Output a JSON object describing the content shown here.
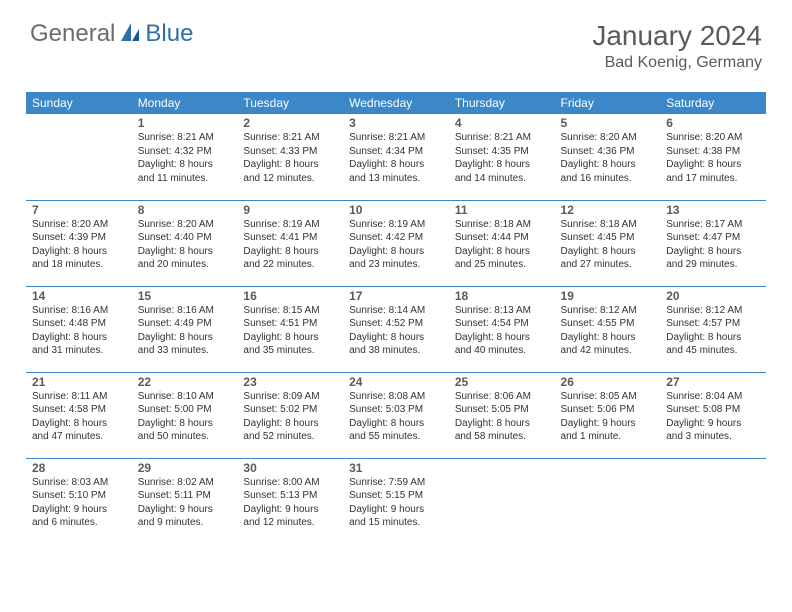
{
  "brand": {
    "part1": "General",
    "part2": "Blue"
  },
  "title": "January 2024",
  "location": "Bad Koenig, Germany",
  "colors": {
    "header_bg": "#3b87c8",
    "header_text": "#ffffff",
    "grid_line": "#3b87c8",
    "text": "#333333",
    "title_text": "#5a5a5a",
    "logo_gray": "#6b6b6b",
    "logo_blue": "#2f6fa8"
  },
  "weekdays": [
    "Sunday",
    "Monday",
    "Tuesday",
    "Wednesday",
    "Thursday",
    "Friday",
    "Saturday"
  ],
  "days": {
    "1": {
      "sunrise": "Sunrise: 8:21 AM",
      "sunset": "Sunset: 4:32 PM",
      "daylight1": "Daylight: 8 hours",
      "daylight2": "and 11 minutes."
    },
    "2": {
      "sunrise": "Sunrise: 8:21 AM",
      "sunset": "Sunset: 4:33 PM",
      "daylight1": "Daylight: 8 hours",
      "daylight2": "and 12 minutes."
    },
    "3": {
      "sunrise": "Sunrise: 8:21 AM",
      "sunset": "Sunset: 4:34 PM",
      "daylight1": "Daylight: 8 hours",
      "daylight2": "and 13 minutes."
    },
    "4": {
      "sunrise": "Sunrise: 8:21 AM",
      "sunset": "Sunset: 4:35 PM",
      "daylight1": "Daylight: 8 hours",
      "daylight2": "and 14 minutes."
    },
    "5": {
      "sunrise": "Sunrise: 8:20 AM",
      "sunset": "Sunset: 4:36 PM",
      "daylight1": "Daylight: 8 hours",
      "daylight2": "and 16 minutes."
    },
    "6": {
      "sunrise": "Sunrise: 8:20 AM",
      "sunset": "Sunset: 4:38 PM",
      "daylight1": "Daylight: 8 hours",
      "daylight2": "and 17 minutes."
    },
    "7": {
      "sunrise": "Sunrise: 8:20 AM",
      "sunset": "Sunset: 4:39 PM",
      "daylight1": "Daylight: 8 hours",
      "daylight2": "and 18 minutes."
    },
    "8": {
      "sunrise": "Sunrise: 8:20 AM",
      "sunset": "Sunset: 4:40 PM",
      "daylight1": "Daylight: 8 hours",
      "daylight2": "and 20 minutes."
    },
    "9": {
      "sunrise": "Sunrise: 8:19 AM",
      "sunset": "Sunset: 4:41 PM",
      "daylight1": "Daylight: 8 hours",
      "daylight2": "and 22 minutes."
    },
    "10": {
      "sunrise": "Sunrise: 8:19 AM",
      "sunset": "Sunset: 4:42 PM",
      "daylight1": "Daylight: 8 hours",
      "daylight2": "and 23 minutes."
    },
    "11": {
      "sunrise": "Sunrise: 8:18 AM",
      "sunset": "Sunset: 4:44 PM",
      "daylight1": "Daylight: 8 hours",
      "daylight2": "and 25 minutes."
    },
    "12": {
      "sunrise": "Sunrise: 8:18 AM",
      "sunset": "Sunset: 4:45 PM",
      "daylight1": "Daylight: 8 hours",
      "daylight2": "and 27 minutes."
    },
    "13": {
      "sunrise": "Sunrise: 8:17 AM",
      "sunset": "Sunset: 4:47 PM",
      "daylight1": "Daylight: 8 hours",
      "daylight2": "and 29 minutes."
    },
    "14": {
      "sunrise": "Sunrise: 8:16 AM",
      "sunset": "Sunset: 4:48 PM",
      "daylight1": "Daylight: 8 hours",
      "daylight2": "and 31 minutes."
    },
    "15": {
      "sunrise": "Sunrise: 8:16 AM",
      "sunset": "Sunset: 4:49 PM",
      "daylight1": "Daylight: 8 hours",
      "daylight2": "and 33 minutes."
    },
    "16": {
      "sunrise": "Sunrise: 8:15 AM",
      "sunset": "Sunset: 4:51 PM",
      "daylight1": "Daylight: 8 hours",
      "daylight2": "and 35 minutes."
    },
    "17": {
      "sunrise": "Sunrise: 8:14 AM",
      "sunset": "Sunset: 4:52 PM",
      "daylight1": "Daylight: 8 hours",
      "daylight2": "and 38 minutes."
    },
    "18": {
      "sunrise": "Sunrise: 8:13 AM",
      "sunset": "Sunset: 4:54 PM",
      "daylight1": "Daylight: 8 hours",
      "daylight2": "and 40 minutes."
    },
    "19": {
      "sunrise": "Sunrise: 8:12 AM",
      "sunset": "Sunset: 4:55 PM",
      "daylight1": "Daylight: 8 hours",
      "daylight2": "and 42 minutes."
    },
    "20": {
      "sunrise": "Sunrise: 8:12 AM",
      "sunset": "Sunset: 4:57 PM",
      "daylight1": "Daylight: 8 hours",
      "daylight2": "and 45 minutes."
    },
    "21": {
      "sunrise": "Sunrise: 8:11 AM",
      "sunset": "Sunset: 4:58 PM",
      "daylight1": "Daylight: 8 hours",
      "daylight2": "and 47 minutes."
    },
    "22": {
      "sunrise": "Sunrise: 8:10 AM",
      "sunset": "Sunset: 5:00 PM",
      "daylight1": "Daylight: 8 hours",
      "daylight2": "and 50 minutes."
    },
    "23": {
      "sunrise": "Sunrise: 8:09 AM",
      "sunset": "Sunset: 5:02 PM",
      "daylight1": "Daylight: 8 hours",
      "daylight2": "and 52 minutes."
    },
    "24": {
      "sunrise": "Sunrise: 8:08 AM",
      "sunset": "Sunset: 5:03 PM",
      "daylight1": "Daylight: 8 hours",
      "daylight2": "and 55 minutes."
    },
    "25": {
      "sunrise": "Sunrise: 8:06 AM",
      "sunset": "Sunset: 5:05 PM",
      "daylight1": "Daylight: 8 hours",
      "daylight2": "and 58 minutes."
    },
    "26": {
      "sunrise": "Sunrise: 8:05 AM",
      "sunset": "Sunset: 5:06 PM",
      "daylight1": "Daylight: 9 hours",
      "daylight2": "and 1 minute."
    },
    "27": {
      "sunrise": "Sunrise: 8:04 AM",
      "sunset": "Sunset: 5:08 PM",
      "daylight1": "Daylight: 9 hours",
      "daylight2": "and 3 minutes."
    },
    "28": {
      "sunrise": "Sunrise: 8:03 AM",
      "sunset": "Sunset: 5:10 PM",
      "daylight1": "Daylight: 9 hours",
      "daylight2": "and 6 minutes."
    },
    "29": {
      "sunrise": "Sunrise: 8:02 AM",
      "sunset": "Sunset: 5:11 PM",
      "daylight1": "Daylight: 9 hours",
      "daylight2": "and 9 minutes."
    },
    "30": {
      "sunrise": "Sunrise: 8:00 AM",
      "sunset": "Sunset: 5:13 PM",
      "daylight1": "Daylight: 9 hours",
      "daylight2": "and 12 minutes."
    },
    "31": {
      "sunrise": "Sunrise: 7:59 AM",
      "sunset": "Sunset: 5:15 PM",
      "daylight1": "Daylight: 9 hours",
      "daylight2": "and 15 minutes."
    }
  },
  "grid": [
    [
      null,
      "1",
      "2",
      "3",
      "4",
      "5",
      "6"
    ],
    [
      "7",
      "8",
      "9",
      "10",
      "11",
      "12",
      "13"
    ],
    [
      "14",
      "15",
      "16",
      "17",
      "18",
      "19",
      "20"
    ],
    [
      "21",
      "22",
      "23",
      "24",
      "25",
      "26",
      "27"
    ],
    [
      "28",
      "29",
      "30",
      "31",
      null,
      null,
      null
    ]
  ]
}
